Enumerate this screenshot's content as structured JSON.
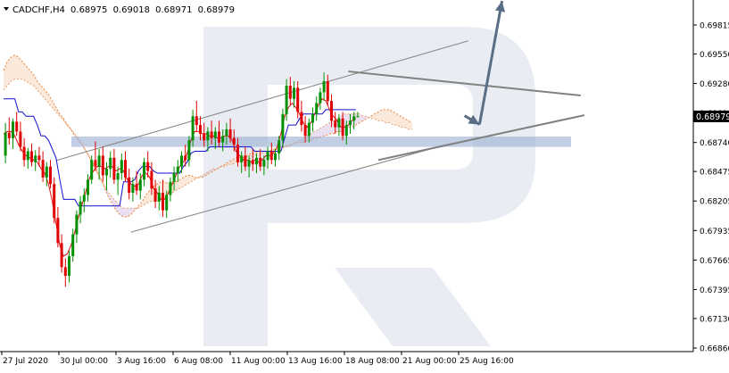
{
  "header": {
    "symbol": "CADCHF,H4",
    "open": "0.68975",
    "high": "0.69018",
    "low": "0.68971",
    "close": "0.68979"
  },
  "chart_data": {
    "type": "candlestick",
    "symbol": "CADCHF",
    "timeframe": "H4",
    "current_price_label": "0.68979",
    "y_ticks": [
      "0.69815",
      "0.69550",
      "0.69280",
      "0.69010",
      "0.68740",
      "0.68475",
      "0.68205",
      "0.67935",
      "0.67665",
      "0.67395",
      "0.67130",
      "0.66860"
    ],
    "x_ticks": [
      "27 Jul 2020",
      "30 Jul 00:00",
      "3 Aug 16:00",
      "6 Aug 08:00",
      "11 Aug 00:00",
      "13 Aug 16:00",
      "18 Aug 08:00",
      "21 Aug 00:00",
      "25 Aug 16:00"
    ],
    "ylim": [
      0.6686,
      0.7
    ],
    "grid": false,
    "candles": [
      {
        "o": 0.6862,
        "h": 0.6892,
        "l": 0.6855,
        "c": 0.6883
      },
      {
        "o": 0.6883,
        "h": 0.6897,
        "l": 0.6872,
        "c": 0.6878
      },
      {
        "o": 0.6878,
        "h": 0.6896,
        "l": 0.6868,
        "c": 0.6893
      },
      {
        "o": 0.6893,
        "h": 0.6902,
        "l": 0.688,
        "c": 0.6884
      },
      {
        "o": 0.6884,
        "h": 0.6893,
        "l": 0.6866,
        "c": 0.687
      },
      {
        "o": 0.687,
        "h": 0.6878,
        "l": 0.6852,
        "c": 0.6858
      },
      {
        "o": 0.6858,
        "h": 0.6869,
        "l": 0.685,
        "c": 0.6866
      },
      {
        "o": 0.6866,
        "h": 0.6873,
        "l": 0.6852,
        "c": 0.6856
      },
      {
        "o": 0.6856,
        "h": 0.6867,
        "l": 0.6848,
        "c": 0.6862
      },
      {
        "o": 0.6862,
        "h": 0.687,
        "l": 0.6852,
        "c": 0.6858
      },
      {
        "o": 0.6858,
        "h": 0.6866,
        "l": 0.6838,
        "c": 0.6842
      },
      {
        "o": 0.6842,
        "h": 0.6856,
        "l": 0.6834,
        "c": 0.6852
      },
      {
        "o": 0.6852,
        "h": 0.6858,
        "l": 0.6832,
        "c": 0.6836
      },
      {
        "o": 0.6836,
        "h": 0.6842,
        "l": 0.68,
        "c": 0.6805
      },
      {
        "o": 0.6805,
        "h": 0.6815,
        "l": 0.6778,
        "c": 0.6782
      },
      {
        "o": 0.6782,
        "h": 0.679,
        "l": 0.6755,
        "c": 0.676
      },
      {
        "o": 0.676,
        "h": 0.6768,
        "l": 0.6742,
        "c": 0.6752
      },
      {
        "o": 0.6752,
        "h": 0.6775,
        "l": 0.6746,
        "c": 0.677
      },
      {
        "o": 0.677,
        "h": 0.6795,
        "l": 0.6765,
        "c": 0.679
      },
      {
        "o": 0.679,
        "h": 0.6812,
        "l": 0.6782,
        "c": 0.6808
      },
      {
        "o": 0.6808,
        "h": 0.6825,
        "l": 0.68,
        "c": 0.682
      },
      {
        "o": 0.682,
        "h": 0.6832,
        "l": 0.681,
        "c": 0.6826
      },
      {
        "o": 0.6826,
        "h": 0.6845,
        "l": 0.682,
        "c": 0.684
      },
      {
        "o": 0.684,
        "h": 0.6862,
        "l": 0.6836,
        "c": 0.6858
      },
      {
        "o": 0.6858,
        "h": 0.6875,
        "l": 0.6848,
        "c": 0.6852
      },
      {
        "o": 0.6852,
        "h": 0.6868,
        "l": 0.684,
        "c": 0.6862
      },
      {
        "o": 0.6862,
        "h": 0.687,
        "l": 0.6838,
        "c": 0.6844
      },
      {
        "o": 0.6844,
        "h": 0.6856,
        "l": 0.683,
        "c": 0.685
      },
      {
        "o": 0.685,
        "h": 0.6866,
        "l": 0.6842,
        "c": 0.686
      },
      {
        "o": 0.686,
        "h": 0.6868,
        "l": 0.6836,
        "c": 0.684
      },
      {
        "o": 0.684,
        "h": 0.6852,
        "l": 0.6826,
        "c": 0.6846
      },
      {
        "o": 0.6846,
        "h": 0.6864,
        "l": 0.684,
        "c": 0.6858
      },
      {
        "o": 0.6858,
        "h": 0.6866,
        "l": 0.6838,
        "c": 0.6842
      },
      {
        "o": 0.6842,
        "h": 0.685,
        "l": 0.6822,
        "c": 0.6828
      },
      {
        "o": 0.6828,
        "h": 0.6842,
        "l": 0.682,
        "c": 0.6836
      },
      {
        "o": 0.6836,
        "h": 0.6848,
        "l": 0.6826,
        "c": 0.683
      },
      {
        "o": 0.683,
        "h": 0.6846,
        "l": 0.6822,
        "c": 0.684
      },
      {
        "o": 0.684,
        "h": 0.686,
        "l": 0.6834,
        "c": 0.6856
      },
      {
        "o": 0.6856,
        "h": 0.6866,
        "l": 0.6842,
        "c": 0.6848
      },
      {
        "o": 0.6848,
        "h": 0.6856,
        "l": 0.6826,
        "c": 0.6832
      },
      {
        "o": 0.6832,
        "h": 0.684,
        "l": 0.6814,
        "c": 0.682
      },
      {
        "o": 0.682,
        "h": 0.6834,
        "l": 0.6812,
        "c": 0.6828
      },
      {
        "o": 0.6828,
        "h": 0.684,
        "l": 0.6806,
        "c": 0.6812
      },
      {
        "o": 0.6812,
        "h": 0.683,
        "l": 0.6805,
        "c": 0.6826
      },
      {
        "o": 0.6826,
        "h": 0.6842,
        "l": 0.682,
        "c": 0.6838
      },
      {
        "o": 0.6838,
        "h": 0.6852,
        "l": 0.683,
        "c": 0.6846
      },
      {
        "o": 0.6846,
        "h": 0.6858,
        "l": 0.6838,
        "c": 0.6852
      },
      {
        "o": 0.6852,
        "h": 0.6866,
        "l": 0.6846,
        "c": 0.6862
      },
      {
        "o": 0.6862,
        "h": 0.6872,
        "l": 0.6852,
        "c": 0.6858
      },
      {
        "o": 0.6858,
        "h": 0.688,
        "l": 0.6852,
        "c": 0.6876
      },
      {
        "o": 0.6876,
        "h": 0.6904,
        "l": 0.687,
        "c": 0.6898
      },
      {
        "o": 0.6898,
        "h": 0.6912,
        "l": 0.6884,
        "c": 0.689
      },
      {
        "o": 0.689,
        "h": 0.6898,
        "l": 0.6876,
        "c": 0.6882
      },
      {
        "o": 0.6882,
        "h": 0.6892,
        "l": 0.687,
        "c": 0.6876
      },
      {
        "o": 0.6876,
        "h": 0.6888,
        "l": 0.6866,
        "c": 0.6884
      },
      {
        "o": 0.6884,
        "h": 0.6894,
        "l": 0.6872,
        "c": 0.6878
      },
      {
        "o": 0.6878,
        "h": 0.6888,
        "l": 0.6868,
        "c": 0.6884
      },
      {
        "o": 0.6884,
        "h": 0.6894,
        "l": 0.687,
        "c": 0.6874
      },
      {
        "o": 0.6874,
        "h": 0.6886,
        "l": 0.6866,
        "c": 0.688
      },
      {
        "o": 0.688,
        "h": 0.6892,
        "l": 0.6872,
        "c": 0.6886
      },
      {
        "o": 0.6886,
        "h": 0.6896,
        "l": 0.6874,
        "c": 0.6878
      },
      {
        "o": 0.6878,
        "h": 0.6886,
        "l": 0.6866,
        "c": 0.6872
      },
      {
        "o": 0.6872,
        "h": 0.6878,
        "l": 0.6852,
        "c": 0.6856
      },
      {
        "o": 0.6856,
        "h": 0.6866,
        "l": 0.6846,
        "c": 0.6862
      },
      {
        "o": 0.6862,
        "h": 0.687,
        "l": 0.6848,
        "c": 0.6852
      },
      {
        "o": 0.6852,
        "h": 0.6862,
        "l": 0.6842,
        "c": 0.6858
      },
      {
        "o": 0.6858,
        "h": 0.6868,
        "l": 0.6848,
        "c": 0.6854
      },
      {
        "o": 0.6854,
        "h": 0.6864,
        "l": 0.6846,
        "c": 0.686
      },
      {
        "o": 0.686,
        "h": 0.6868,
        "l": 0.6848,
        "c": 0.6852
      },
      {
        "o": 0.6852,
        "h": 0.6862,
        "l": 0.6844,
        "c": 0.6858
      },
      {
        "o": 0.6858,
        "h": 0.687,
        "l": 0.685,
        "c": 0.6866
      },
      {
        "o": 0.6866,
        "h": 0.6874,
        "l": 0.6854,
        "c": 0.6858
      },
      {
        "o": 0.6858,
        "h": 0.6868,
        "l": 0.6852,
        "c": 0.6864
      },
      {
        "o": 0.6864,
        "h": 0.688,
        "l": 0.6858,
        "c": 0.6876
      },
      {
        "o": 0.6876,
        "h": 0.6905,
        "l": 0.687,
        "c": 0.69
      },
      {
        "o": 0.69,
        "h": 0.6932,
        "l": 0.6894,
        "c": 0.6926
      },
      {
        "o": 0.6926,
        "h": 0.6934,
        "l": 0.6908,
        "c": 0.6914
      },
      {
        "o": 0.6914,
        "h": 0.693,
        "l": 0.6906,
        "c": 0.6924
      },
      {
        "o": 0.6924,
        "h": 0.693,
        "l": 0.6896,
        "c": 0.6902
      },
      {
        "o": 0.6902,
        "h": 0.6912,
        "l": 0.6884,
        "c": 0.689
      },
      {
        "o": 0.689,
        "h": 0.6898,
        "l": 0.6874,
        "c": 0.688
      },
      {
        "o": 0.688,
        "h": 0.6896,
        "l": 0.6874,
        "c": 0.6892
      },
      {
        "o": 0.6892,
        "h": 0.6906,
        "l": 0.6884,
        "c": 0.69
      },
      {
        "o": 0.69,
        "h": 0.6916,
        "l": 0.6894,
        "c": 0.691
      },
      {
        "o": 0.691,
        "h": 0.6924,
        "l": 0.6904,
        "c": 0.692
      },
      {
        "o": 0.692,
        "h": 0.6938,
        "l": 0.6912,
        "c": 0.693
      },
      {
        "o": 0.693,
        "h": 0.6936,
        "l": 0.6908,
        "c": 0.6912
      },
      {
        "o": 0.6912,
        "h": 0.6918,
        "l": 0.6888,
        "c": 0.6894
      },
      {
        "o": 0.6894,
        "h": 0.6902,
        "l": 0.6882,
        "c": 0.6888
      },
      {
        "o": 0.6888,
        "h": 0.69,
        "l": 0.688,
        "c": 0.6896
      },
      {
        "o": 0.6896,
        "h": 0.6902,
        "l": 0.6876,
        "c": 0.688
      },
      {
        "o": 0.688,
        "h": 0.6894,
        "l": 0.6872,
        "c": 0.689
      },
      {
        "o": 0.689,
        "h": 0.69,
        "l": 0.6882,
        "c": 0.6894
      },
      {
        "o": 0.6894,
        "h": 0.6902,
        "l": 0.6886,
        "c": 0.6898
      },
      {
        "o": 0.6898,
        "h": 0.6902,
        "l": 0.6897,
        "c": 0.6898
      }
    ],
    "indicators": {
      "tenkan_sen": {
        "color": "#e01010",
        "values": [
          0.6882,
          0.6884,
          0.6884,
          0.688,
          0.6872,
          0.6866,
          0.6862,
          0.686,
          0.6858,
          0.6856,
          0.685,
          0.6846,
          0.6836,
          0.682,
          0.68,
          0.678,
          0.677,
          0.6772,
          0.678,
          0.6792,
          0.6806,
          0.6818,
          0.683,
          0.6842,
          0.6848,
          0.6852,
          0.6852,
          0.685,
          0.6852,
          0.6852,
          0.6848,
          0.685,
          0.6848,
          0.684,
          0.6836,
          0.6834,
          0.6836,
          0.6844,
          0.6846,
          0.6842,
          0.6832,
          0.6828,
          0.6822,
          0.6822,
          0.6828,
          0.6836,
          0.6844,
          0.6852,
          0.6856,
          0.6864,
          0.6876,
          0.6884,
          0.6884,
          0.6882,
          0.6882,
          0.688,
          0.688,
          0.6878,
          0.6878,
          0.688,
          0.688,
          0.6876,
          0.6866,
          0.6862,
          0.6858,
          0.6858,
          0.6856,
          0.6858,
          0.6856,
          0.6858,
          0.6862,
          0.6862,
          0.6864,
          0.687,
          0.6882,
          0.6898,
          0.6906,
          0.691,
          0.6906,
          0.69,
          0.6892,
          0.6888,
          0.6892,
          0.69,
          0.6908,
          0.6914,
          0.6912,
          0.6904,
          0.6898,
          0.6894,
          0.6888,
          0.6888,
          0.689,
          0.6894,
          0.6896
        ]
      },
      "kijun_sen": {
        "color": "#1010d0",
        "values": [
          0.6914,
          0.6914,
          0.6914,
          0.6914,
          0.6902,
          0.6902,
          0.6898,
          0.6898,
          0.6898,
          0.689,
          0.688,
          0.688,
          0.6876,
          0.6868,
          0.686,
          0.684,
          0.6822,
          0.6822,
          0.6822,
          0.6822,
          0.6816,
          0.6816,
          0.6816,
          0.6816,
          0.6816,
          0.6816,
          0.6816,
          0.6816,
          0.6816,
          0.6816,
          0.6816,
          0.6816,
          0.6838,
          0.6838,
          0.6838,
          0.684,
          0.6848,
          0.6852,
          0.6852,
          0.6852,
          0.6848,
          0.6846,
          0.6846,
          0.6846,
          0.6846,
          0.6846,
          0.6846,
          0.6846,
          0.6852,
          0.6856,
          0.6864,
          0.6866,
          0.6866,
          0.6866,
          0.6866,
          0.687,
          0.687,
          0.687,
          0.687,
          0.687,
          0.687,
          0.687,
          0.687,
          0.687,
          0.687,
          0.687,
          0.687,
          0.6866,
          0.6866,
          0.6866,
          0.6866,
          0.6866,
          0.6866,
          0.6866,
          0.6866,
          0.6878,
          0.689,
          0.689,
          0.689,
          0.6896,
          0.69,
          0.69,
          0.69,
          0.69,
          0.69,
          0.69,
          0.6904,
          0.6904,
          0.6904,
          0.6904,
          0.6904,
          0.6904,
          0.6904,
          0.6904,
          0.6904
        ]
      },
      "senkou_span_a": {
        "color": "#f08030",
        "values": [
          0.694,
          0.6948,
          0.6952,
          0.6954,
          0.6952,
          0.6948,
          0.6944,
          0.694,
          0.6936,
          0.693,
          0.6926,
          0.6922,
          0.6918,
          0.6912,
          0.6906,
          0.69,
          0.6896,
          0.689,
          0.6886,
          0.688,
          0.6876,
          0.6872,
          0.6866,
          0.686,
          0.6854,
          0.6848,
          0.684,
          0.6832,
          0.6824,
          0.6818,
          0.6812,
          0.6808,
          0.6806,
          0.6806,
          0.6808,
          0.6812,
          0.6816,
          0.682,
          0.6826,
          0.683,
          0.6834,
          0.6836,
          0.6838,
          0.6838,
          0.6836,
          0.6836,
          0.6838,
          0.684,
          0.6842,
          0.6844,
          0.6844,
          0.6842,
          0.6842,
          0.6842,
          0.6844,
          0.6846,
          0.6848,
          0.685,
          0.6852,
          0.6854,
          0.6856,
          0.6858,
          0.686,
          0.686,
          0.686,
          0.6862,
          0.6864,
          0.6864,
          0.6866,
          0.6866,
          0.6866,
          0.6866,
          0.6868,
          0.6868,
          0.687,
          0.687,
          0.6872,
          0.6872,
          0.6874,
          0.6874,
          0.6874,
          0.6876,
          0.6876,
          0.6878,
          0.6878,
          0.688,
          0.688,
          0.6882,
          0.6882,
          0.6884,
          0.6884,
          0.6886,
          0.6888,
          0.6888,
          0.689,
          0.6892,
          0.6894,
          0.6896,
          0.6898,
          0.69,
          0.6902,
          0.6904,
          0.6904,
          0.6904,
          0.6902,
          0.69,
          0.6898,
          0.6896,
          0.6894,
          0.6892
        ]
      },
      "senkou_span_b": {
        "color": "#e8a070",
        "values": [
          0.6922,
          0.6926,
          0.693,
          0.6932,
          0.6932,
          0.6932,
          0.693,
          0.6928,
          0.6926,
          0.6922,
          0.6918,
          0.6914,
          0.691,
          0.6906,
          0.6902,
          0.6898,
          0.6894,
          0.689,
          0.6886,
          0.6882,
          0.6878,
          0.6872,
          0.6866,
          0.686,
          0.6852,
          0.6846,
          0.684,
          0.6834,
          0.6828,
          0.6824,
          0.682,
          0.6816,
          0.6814,
          0.6814,
          0.6814,
          0.6814,
          0.6814,
          0.6816,
          0.6818,
          0.682,
          0.682,
          0.682,
          0.6822,
          0.6824,
          0.6826,
          0.6828,
          0.683,
          0.6832,
          0.6834,
          0.6836,
          0.6838,
          0.684,
          0.6842,
          0.6844,
          0.6846,
          0.6848,
          0.685,
          0.685,
          0.6852,
          0.6852,
          0.6854,
          0.6854,
          0.6856,
          0.6856,
          0.6858,
          0.6858,
          0.686,
          0.6862,
          0.6862,
          0.6864,
          0.6864,
          0.6866,
          0.6866,
          0.6868,
          0.6868,
          0.687,
          0.687,
          0.6872,
          0.6874,
          0.6876,
          0.6878,
          0.688,
          0.6882,
          0.6884,
          0.6886,
          0.6888,
          0.689,
          0.6892,
          0.6894,
          0.6896,
          0.6898,
          0.69,
          0.69,
          0.69,
          0.69,
          0.69,
          0.6898,
          0.6898,
          0.6896,
          0.6896,
          0.6894,
          0.6894,
          0.6892,
          0.6892,
          0.689,
          0.689,
          0.6888,
          0.6888,
          0.6886,
          0.6886
        ]
      }
    },
    "support_zone": {
      "low": 0.687,
      "high": 0.68795,
      "color": "#a0b4d4"
    },
    "trend_lines": [
      {
        "name": "channel-upper",
        "from": {
          "bar": 14,
          "price": 0.68575
        },
        "to": {
          "bar": 124,
          "price": 0.6967
        },
        "color": "#8a8a8a"
      },
      {
        "name": "channel-lower",
        "from": {
          "bar": 34,
          "price": 0.6792
        },
        "to": {
          "bar": 117,
          "price": 0.6871
        },
        "color": "#8a8a8a"
      },
      {
        "name": "triangle-upper",
        "from": {
          "bar": 92,
          "price": 0.6939
        },
        "to": {
          "bar": 154,
          "price": 0.6917
        },
        "color": "#808080"
      },
      {
        "name": "triangle-lower",
        "from": {
          "bar": 100,
          "price": 0.6858
        },
        "to": {
          "bar": 155,
          "price": 0.6899
        },
        "color": "#808080"
      }
    ],
    "forecast_path": {
      "color": "#5a6f86",
      "points": [
        {
          "bar": 123,
          "price": 0.68985
        },
        {
          "bar": 127,
          "price": 0.68905
        },
        {
          "bar": 133,
          "price": 0.70035
        }
      ]
    },
    "bull_color": "#009000",
    "bear_color": "#e00000"
  }
}
